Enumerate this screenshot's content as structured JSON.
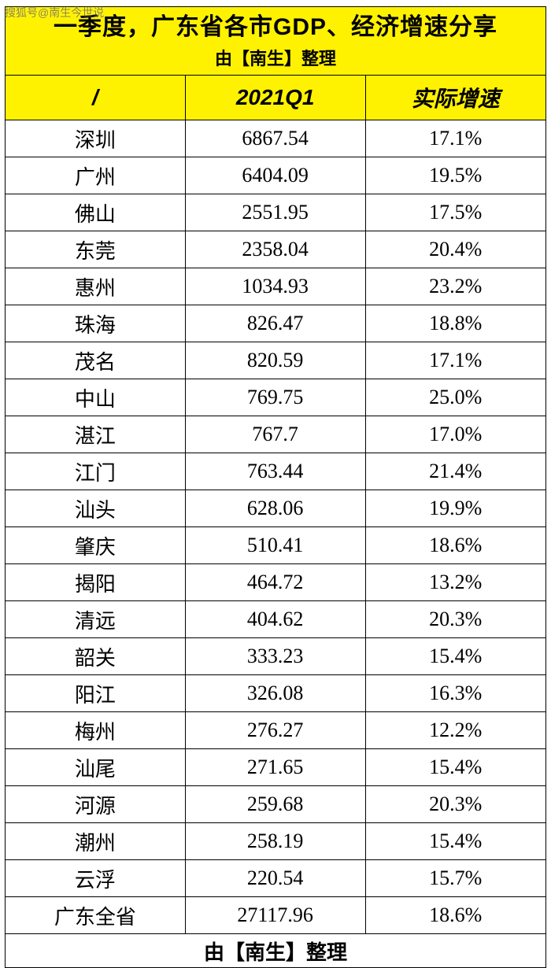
{
  "watermark": "搜狐号@南生今世说",
  "title": {
    "main": "一季度，广东省各市GDP、经济增速分享",
    "sub": "由【南生】整理"
  },
  "columns": [
    "/",
    "2021Q1",
    "实际增速"
  ],
  "rows": [
    {
      "city": "深圳",
      "gdp": "6867.54",
      "growth": "17.1%"
    },
    {
      "city": "广州",
      "gdp": "6404.09",
      "growth": "19.5%"
    },
    {
      "city": "佛山",
      "gdp": "2551.95",
      "growth": "17.5%"
    },
    {
      "city": "东莞",
      "gdp": "2358.04",
      "growth": "20.4%"
    },
    {
      "city": "惠州",
      "gdp": "1034.93",
      "growth": "23.2%"
    },
    {
      "city": "珠海",
      "gdp": "826.47",
      "growth": "18.8%"
    },
    {
      "city": "茂名",
      "gdp": "820.59",
      "growth": "17.1%"
    },
    {
      "city": "中山",
      "gdp": "769.75",
      "growth": "25.0%"
    },
    {
      "city": "湛江",
      "gdp": "767.7",
      "growth": "17.0%"
    },
    {
      "city": "江门",
      "gdp": "763.44",
      "growth": "21.4%"
    },
    {
      "city": "汕头",
      "gdp": "628.06",
      "growth": "19.9%"
    },
    {
      "city": "肇庆",
      "gdp": "510.41",
      "growth": "18.6%"
    },
    {
      "city": "揭阳",
      "gdp": "464.72",
      "growth": "13.2%"
    },
    {
      "city": "清远",
      "gdp": "404.62",
      "growth": "20.3%"
    },
    {
      "city": "韶关",
      "gdp": "333.23",
      "growth": "15.4%"
    },
    {
      "city": "阳江",
      "gdp": "326.08",
      "growth": "16.3%"
    },
    {
      "city": "梅州",
      "gdp": "276.27",
      "growth": "12.2%"
    },
    {
      "city": "汕尾",
      "gdp": "271.65",
      "growth": "15.4%"
    },
    {
      "city": "河源",
      "gdp": "259.68",
      "growth": "20.3%"
    },
    {
      "city": "潮州",
      "gdp": "258.19",
      "growth": "15.4%"
    },
    {
      "city": "云浮",
      "gdp": "220.54",
      "growth": "15.7%"
    },
    {
      "city": "广东全省",
      "gdp": "27117.96",
      "growth": "18.6%"
    }
  ],
  "footer": "由【南生】整理",
  "style": {
    "header_bg": "#fff200",
    "text_color": "#000000",
    "border_color": "#000000",
    "title_fontsize_pt": 22,
    "subtitle_fontsize_pt": 16,
    "header_fontsize_pt": 20,
    "cell_fontsize_pt": 19,
    "font_family_header": "Microsoft YaHei",
    "font_family_body": "SimSun",
    "column_widths_pct": [
      33.3,
      33.3,
      33.4
    ]
  }
}
